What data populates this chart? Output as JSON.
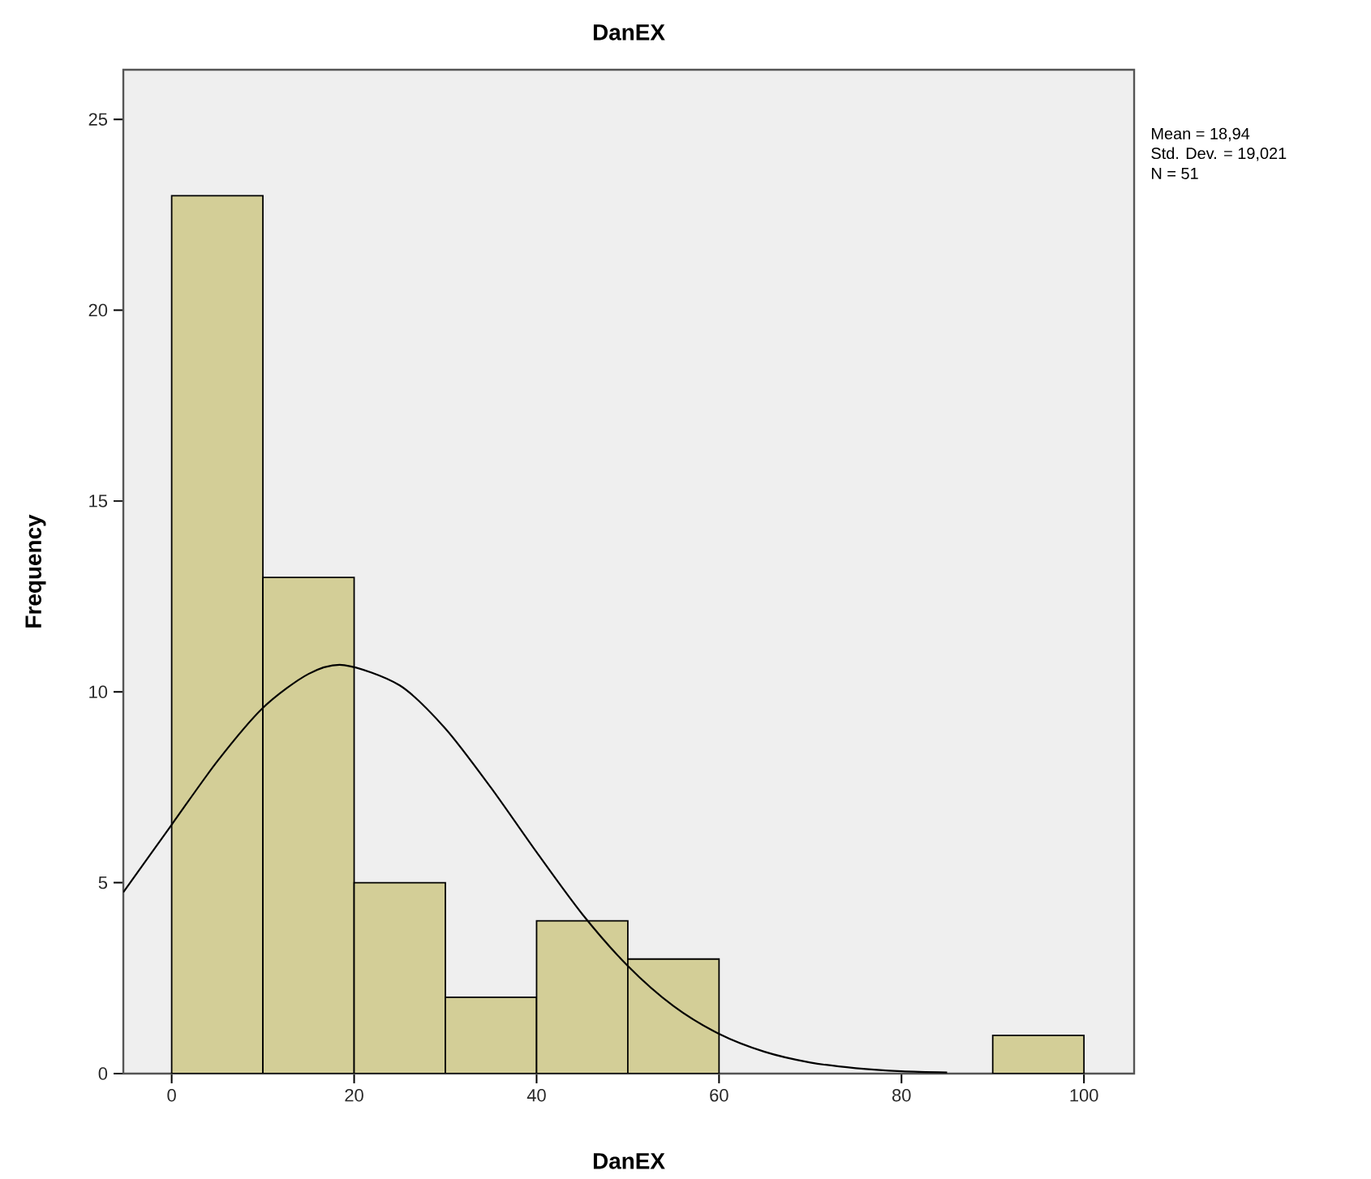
{
  "chart_data": {
    "type": "histogram",
    "title": "DanEX",
    "xlabel": "DanEX",
    "ylabel": "Frequency",
    "series": [
      {
        "color": "#d3ce97",
        "bins": [
          0,
          10,
          20,
          30,
          40,
          50,
          60,
          70,
          80,
          90,
          100
        ],
        "values": [
          23,
          13,
          5,
          2,
          4,
          3,
          0,
          0,
          0,
          1
        ]
      },
      {
        "type": "line",
        "color": "#000000",
        "x": [
          -5.3,
          0,
          5,
          10,
          15,
          18.94,
          25,
          30,
          35,
          40,
          45,
          50,
          55,
          60,
          65,
          70,
          75,
          80,
          85
        ],
        "values": [
          4.75,
          6.52,
          8.18,
          9.58,
          10.47,
          10.7,
          10.17,
          9.04,
          7.49,
          5.8,
          4.18,
          2.82,
          1.77,
          1.04,
          0.57,
          0.29,
          0.14,
          0.06,
          0.03
        ]
      }
    ],
    "xlim": [
      -5.3,
      105.5
    ],
    "ylim": [
      0,
      26.3
    ],
    "xticks": [
      0,
      20,
      40,
      60,
      80,
      100
    ],
    "yticks": [
      0,
      5,
      10,
      15,
      20,
      25
    ],
    "grid": false,
    "annotations": [
      "Mean = 18,94",
      "Std. Dev. = 19,021",
      "N = 51"
    ]
  }
}
